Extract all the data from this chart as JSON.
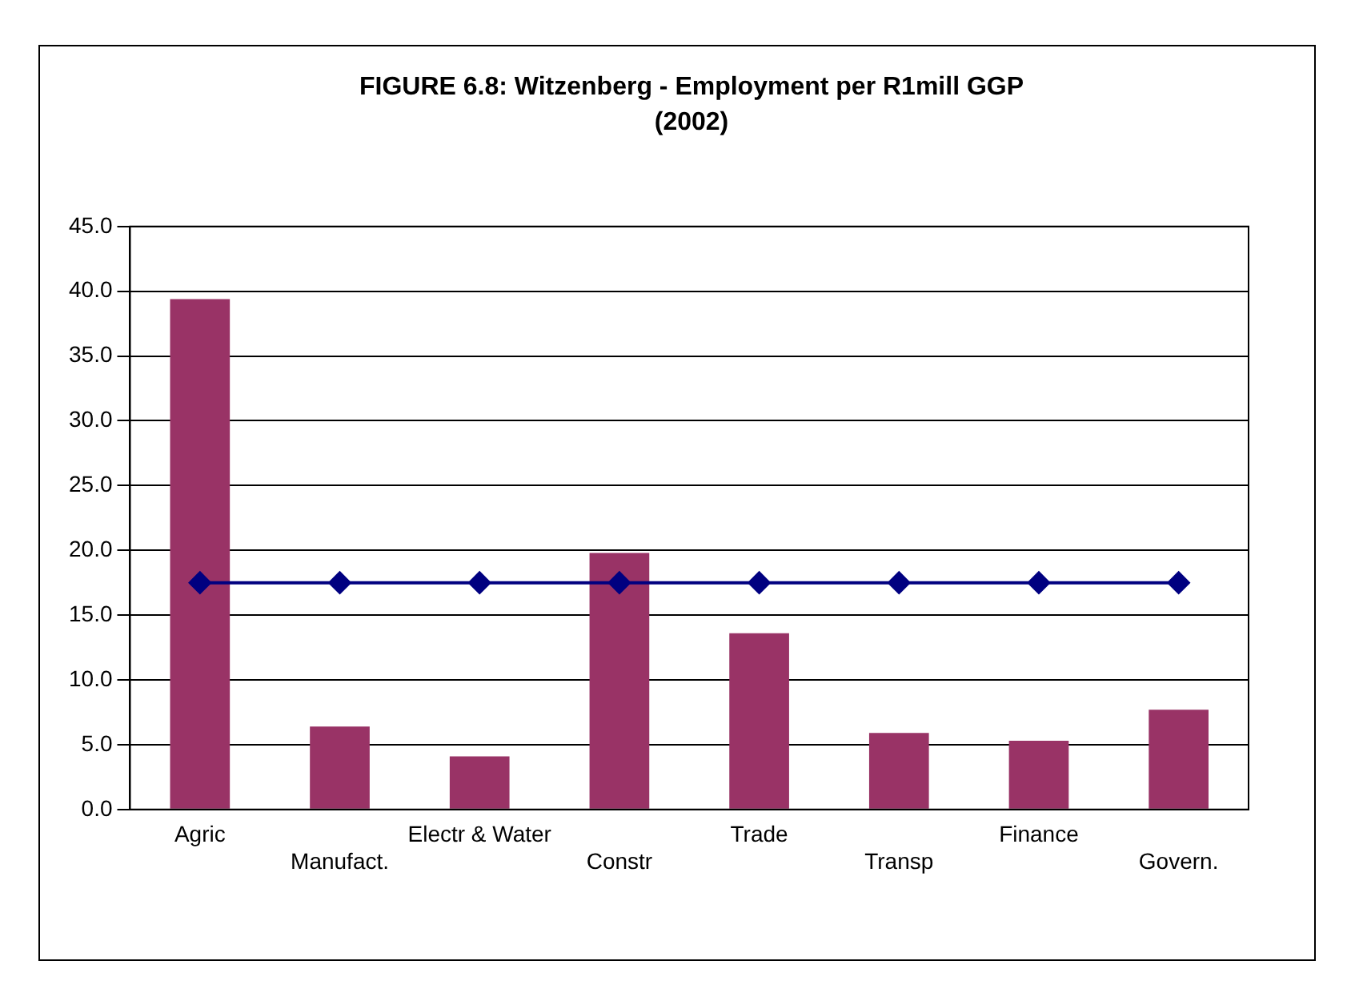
{
  "chart_data": {
    "type": "bar",
    "title": "FIGURE 6.8:  Witzenberg - Employment per R1mill GGP (2002)",
    "categories": [
      "Agric",
      "Manufact.",
      "Electr & Water",
      "Constr",
      "Trade",
      "Transp",
      "Finance",
      "Govern."
    ],
    "series": [
      {
        "color": "#993366",
        "values": [
          39.4,
          6.4,
          4.1,
          19.8,
          13.6,
          5.9,
          5.3,
          7.7
        ]
      },
      {
        "type": "line",
        "color": "#000080",
        "values": [
          17.5,
          17.5,
          17.5,
          17.5,
          17.5,
          17.5,
          17.5,
          17.5
        ],
        "marker": "diamond",
        "line_style": "solid"
      }
    ],
    "ylim": [
      0,
      45
    ],
    "yticks": [
      {
        "value": 0,
        "label": "0.0"
      },
      {
        "value": 5,
        "label": "5.0"
      },
      {
        "value": 10,
        "label": "10.0"
      },
      {
        "value": 15,
        "label": "15.0"
      },
      {
        "value": 20,
        "label": "20.0"
      },
      {
        "value": 25,
        "label": "25.0"
      },
      {
        "value": 30,
        "label": "30.0"
      },
      {
        "value": 35,
        "label": "35.0"
      },
      {
        "value": 40,
        "label": "40.0"
      },
      {
        "value": 45,
        "label": "45.0"
      }
    ],
    "grid": "y",
    "legend": false
  }
}
